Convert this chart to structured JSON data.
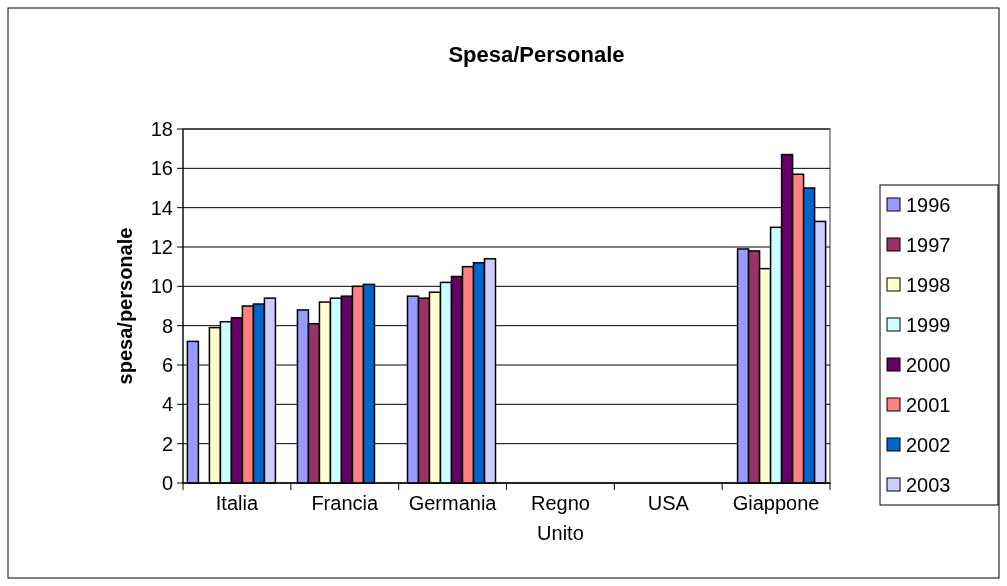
{
  "chart_data": {
    "type": "bar",
    "title": "Spesa/Personale",
    "ylabel": "spesa/personale",
    "categories": [
      "Italia",
      "Francia",
      "Germania",
      "Regno Unito",
      "USA",
      "Giappone"
    ],
    "series": [
      {
        "name": "1996",
        "color": "#9999ff",
        "values": [
          7.2,
          8.8,
          9.5,
          0,
          0,
          11.9
        ]
      },
      {
        "name": "1997",
        "color": "#993366",
        "values": [
          0,
          8.1,
          9.4,
          0,
          0,
          11.8
        ]
      },
      {
        "name": "1998",
        "color": "#ffffcc",
        "values": [
          7.9,
          9.2,
          9.7,
          0,
          0,
          10.9
        ]
      },
      {
        "name": "1999",
        "color": "#ccffff",
        "values": [
          8.2,
          9.4,
          10.2,
          0,
          0,
          13.0
        ]
      },
      {
        "name": "2000",
        "color": "#660066",
        "values": [
          8.4,
          9.5,
          10.5,
          0,
          0,
          16.7
        ]
      },
      {
        "name": "2001",
        "color": "#ff8080",
        "values": [
          9.0,
          10.0,
          11.0,
          0,
          0,
          15.7
        ]
      },
      {
        "name": "2002",
        "color": "#0066cc",
        "values": [
          9.1,
          10.1,
          11.2,
          0,
          0,
          15.0
        ]
      },
      {
        "name": "2003",
        "color": "#ccccff",
        "values": [
          9.4,
          0,
          11.4,
          0,
          0,
          13.3
        ]
      }
    ],
    "ylim": [
      0,
      18
    ],
    "yticks": [
      0,
      2,
      4,
      6,
      8,
      10,
      12,
      14,
      16,
      18
    ],
    "grid": "y",
    "legend": "right"
  }
}
